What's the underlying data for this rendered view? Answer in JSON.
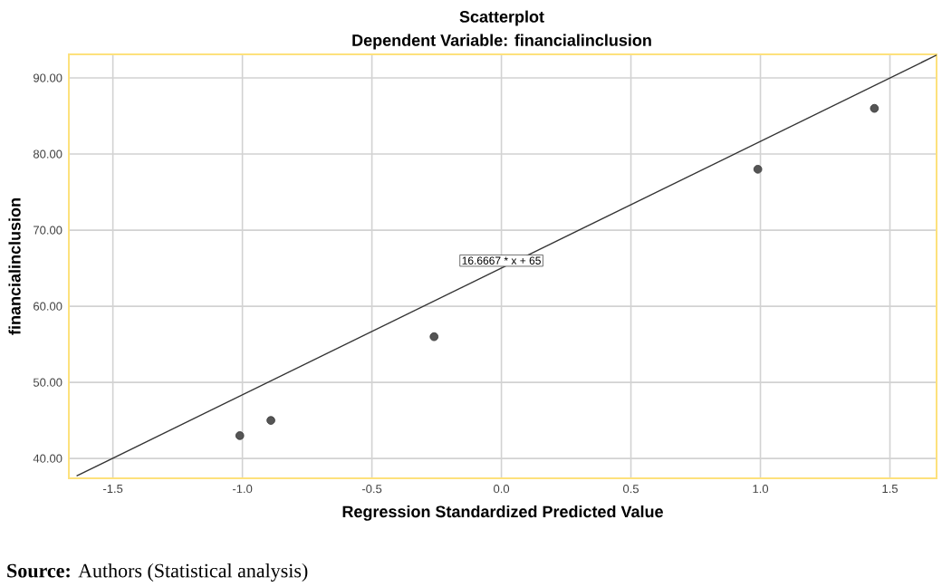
{
  "chart_data": {
    "type": "scatter",
    "title": "Scatterplot",
    "subtitle": "Dependent Variable: financialinclusion",
    "xlabel": "Regression Standardized Predicted Value",
    "ylabel": "financialinclusion",
    "xlim": [
      -1.67,
      1.68
    ],
    "ylim": [
      37.4,
      93.1
    ],
    "xticks": [
      {
        "value": -1.5,
        "label": "-1.5"
      },
      {
        "value": -1.0,
        "label": "-1.0"
      },
      {
        "value": -0.5,
        "label": "-0.5"
      },
      {
        "value": 0.0,
        "label": "0.0"
      },
      {
        "value": 0.5,
        "label": "0.5"
      },
      {
        "value": 1.0,
        "label": "1.0"
      },
      {
        "value": 1.5,
        "label": "1.5"
      }
    ],
    "yticks": [
      {
        "value": 40,
        "label": "40.00"
      },
      {
        "value": 50,
        "label": "50.00"
      },
      {
        "value": 60,
        "label": "60.00"
      },
      {
        "value": 70,
        "label": "70.00"
      },
      {
        "value": 80,
        "label": "80.00"
      },
      {
        "value": 90,
        "label": "90.00"
      }
    ],
    "grid": true,
    "series": [
      {
        "marker": "circle",
        "color": "#555555",
        "x": [
          -1.01,
          -0.89,
          -0.26,
          0.99,
          1.44
        ],
        "values": [
          43,
          45,
          56,
          78,
          86
        ]
      },
      {
        "type": "line",
        "color": "#333333",
        "x": [
          -1.64,
          1.68
        ],
        "values": [
          37.7,
          93.0
        ]
      }
    ],
    "annotations": [
      {
        "text": "16.6667 * x + 65",
        "x": 0,
        "y": 66
      },
      "**Source:** Authors (Statistical analysis)"
    ]
  }
}
